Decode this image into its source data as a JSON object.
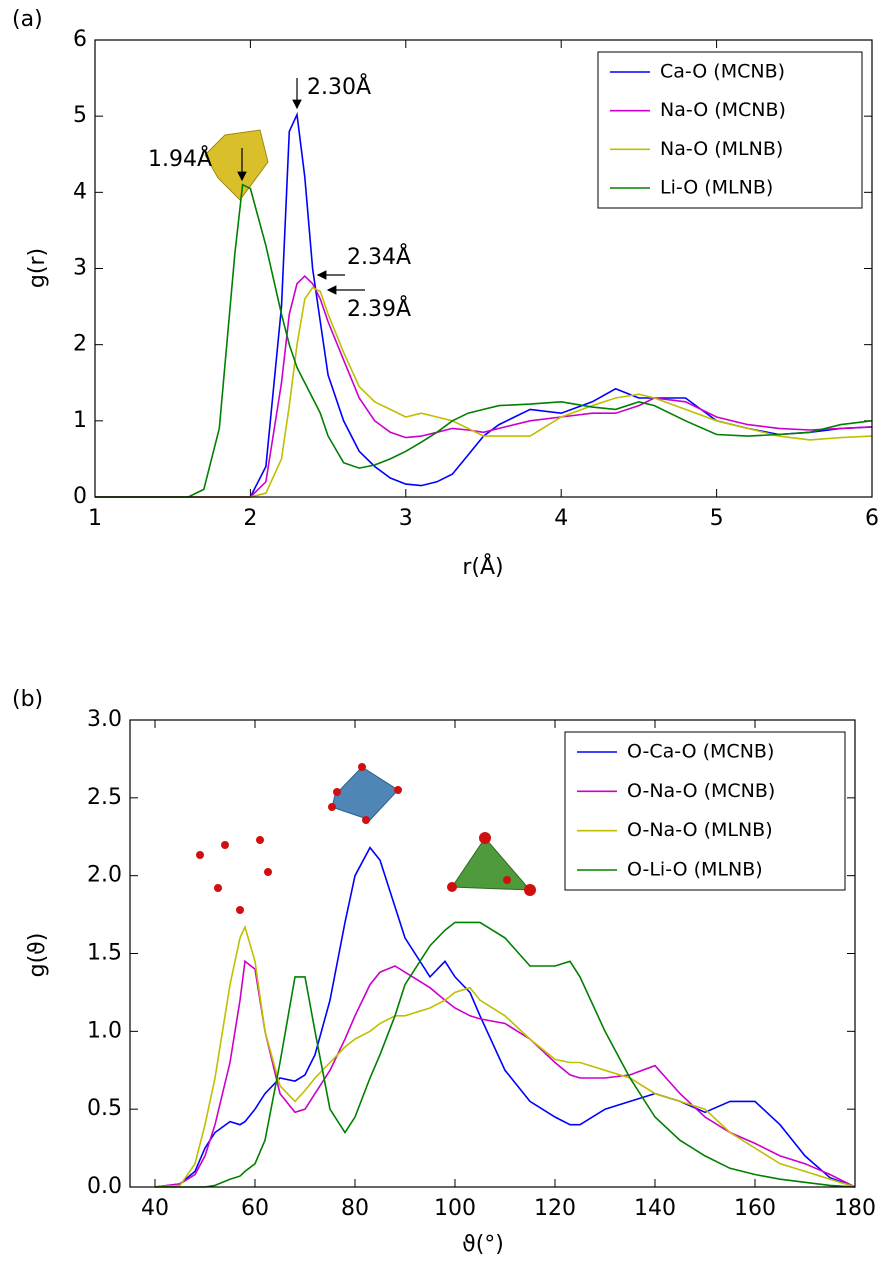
{
  "chart_data": [
    {
      "type": "line",
      "panel_label": "(a)",
      "x_label": "r(Å)",
      "y_label": "g(r)",
      "xlim": [
        1,
        6
      ],
      "xticks": [
        1,
        2,
        3,
        4,
        5,
        6
      ],
      "ylim": [
        0,
        6
      ],
      "yticks": [
        0,
        1,
        2,
        3,
        4,
        5,
        6
      ],
      "legend": "upper right",
      "x": [
        1.0,
        1.5,
        1.6,
        1.7,
        1.8,
        1.9,
        1.95,
        2.0,
        2.1,
        2.2,
        2.25,
        2.3,
        2.35,
        2.4,
        2.45,
        2.5,
        2.6,
        2.7,
        2.8,
        2.9,
        3.0,
        3.1,
        3.2,
        3.3,
        3.4,
        3.5,
        3.6,
        3.8,
        4.0,
        4.2,
        4.35,
        4.5,
        4.6,
        4.8,
        5.0,
        5.2,
        5.4,
        5.6,
        5.8,
        6.0
      ],
      "series": [
        {
          "name": "Ca-O (MCNB)",
          "color": "#0000ff",
          "values": [
            0,
            0,
            0,
            0,
            0,
            0,
            0,
            0,
            0.4,
            2.5,
            4.8,
            5.02,
            4.2,
            3.0,
            2.3,
            1.6,
            1.0,
            0.6,
            0.4,
            0.25,
            0.17,
            0.15,
            0.2,
            0.3,
            0.55,
            0.8,
            0.95,
            1.15,
            1.1,
            1.25,
            1.42,
            1.3,
            1.3,
            1.3,
            1.0,
            0.9,
            0.82,
            0.85,
            0.9,
            0.92
          ]
        },
        {
          "name": "Na-O (MCNB)",
          "color": "#cc00cc",
          "values": [
            0,
            0,
            0,
            0,
            0,
            0,
            0,
            0,
            0.2,
            1.5,
            2.4,
            2.8,
            2.9,
            2.8,
            2.6,
            2.3,
            1.8,
            1.3,
            1.0,
            0.85,
            0.78,
            0.8,
            0.85,
            0.9,
            0.88,
            0.85,
            0.9,
            1.0,
            1.05,
            1.1,
            1.1,
            1.2,
            1.3,
            1.25,
            1.05,
            0.95,
            0.9,
            0.88,
            0.9,
            0.92
          ]
        },
        {
          "name": "Na-O (MLNB)",
          "color": "#bfbf00",
          "values": [
            0,
            0,
            0,
            0,
            0,
            0,
            0,
            0,
            0.05,
            0.5,
            1.2,
            2.0,
            2.6,
            2.75,
            2.7,
            2.4,
            1.9,
            1.45,
            1.25,
            1.15,
            1.05,
            1.1,
            1.05,
            1.0,
            0.9,
            0.8,
            0.8,
            0.8,
            1.05,
            1.2,
            1.3,
            1.35,
            1.3,
            1.15,
            1.0,
            0.9,
            0.8,
            0.75,
            0.78,
            0.8
          ]
        },
        {
          "name": "Li-O (MLNB)",
          "color": "#008000",
          "values": [
            0,
            0,
            0,
            0.1,
            0.9,
            3.2,
            4.1,
            4.05,
            3.3,
            2.4,
            2.0,
            1.7,
            1.5,
            1.3,
            1.1,
            0.8,
            0.45,
            0.38,
            0.42,
            0.5,
            0.6,
            0.72,
            0.85,
            1.0,
            1.1,
            1.15,
            1.2,
            1.22,
            1.25,
            1.18,
            1.15,
            1.25,
            1.2,
            1.0,
            0.82,
            0.8,
            0.82,
            0.85,
            0.95,
            1.0
          ]
        }
      ],
      "annotations": [
        "2.30Å",
        "1.94Å",
        "2.34Å",
        "2.39Å"
      ]
    },
    {
      "type": "line",
      "panel_label": "(b)",
      "x_label": "ϑ(°)",
      "y_label": "g(ϑ)",
      "xlim": [
        35,
        180
      ],
      "xticks": [
        40,
        60,
        80,
        100,
        120,
        140,
        160,
        180
      ],
      "ylim": [
        0,
        3
      ],
      "yticks": [
        {
          "value": 0,
          "label": "0.0"
        },
        0.5,
        {
          "value": 1,
          "label": "1.0"
        },
        1.5,
        {
          "value": 2,
          "label": "2.0"
        },
        2.5,
        {
          "value": 3,
          "label": "3.0"
        }
      ],
      "legend": "upper right",
      "x": [
        40,
        45,
        48,
        50,
        52,
        55,
        57,
        58,
        60,
        62,
        65,
        68,
        70,
        72,
        75,
        78,
        80,
        83,
        85,
        88,
        90,
        95,
        98,
        100,
        103,
        105,
        110,
        115,
        120,
        123,
        125,
        130,
        135,
        140,
        145,
        150,
        155,
        160,
        165,
        170,
        175,
        180
      ],
      "series": [
        {
          "name": "O-Ca-O (MCNB)",
          "color": "#0000ff",
          "values": [
            0,
            0.02,
            0.1,
            0.25,
            0.35,
            0.42,
            0.4,
            0.42,
            0.5,
            0.6,
            0.7,
            0.68,
            0.72,
            0.85,
            1.2,
            1.7,
            2.0,
            2.18,
            2.1,
            1.8,
            1.6,
            1.35,
            1.45,
            1.35,
            1.25,
            1.1,
            0.75,
            0.55,
            0.45,
            0.4,
            0.4,
            0.5,
            0.55,
            0.6,
            0.55,
            0.48,
            0.55,
            0.55,
            0.4,
            0.2,
            0.06,
            0
          ]
        },
        {
          "name": "O-Na-O (MCNB)",
          "color": "#cc00cc",
          "values": [
            0,
            0.02,
            0.08,
            0.2,
            0.4,
            0.8,
            1.2,
            1.45,
            1.4,
            1.0,
            0.6,
            0.48,
            0.5,
            0.6,
            0.75,
            0.95,
            1.1,
            1.3,
            1.38,
            1.42,
            1.38,
            1.28,
            1.2,
            1.15,
            1.1,
            1.08,
            1.05,
            0.95,
            0.8,
            0.72,
            0.7,
            0.7,
            0.72,
            0.78,
            0.6,
            0.45,
            0.35,
            0.28,
            0.2,
            0.15,
            0.08,
            0
          ]
        },
        {
          "name": "O-Na-O (MLNB)",
          "color": "#bfbf00",
          "values": [
            0,
            0.01,
            0.15,
            0.4,
            0.7,
            1.3,
            1.6,
            1.67,
            1.45,
            1.0,
            0.65,
            0.55,
            0.62,
            0.7,
            0.8,
            0.9,
            0.95,
            1.0,
            1.05,
            1.1,
            1.1,
            1.15,
            1.2,
            1.25,
            1.28,
            1.2,
            1.1,
            0.95,
            0.82,
            0.8,
            0.8,
            0.75,
            0.7,
            0.6,
            0.55,
            0.5,
            0.35,
            0.25,
            0.15,
            0.1,
            0.05,
            0
          ]
        },
        {
          "name": "O-Li-O (MLNB)",
          "color": "#008000",
          "values": [
            0,
            0,
            0,
            0,
            0.01,
            0.05,
            0.07,
            0.1,
            0.15,
            0.3,
            0.8,
            1.35,
            1.35,
            1.0,
            0.5,
            0.35,
            0.45,
            0.7,
            0.85,
            1.1,
            1.3,
            1.55,
            1.65,
            1.7,
            1.7,
            1.7,
            1.6,
            1.42,
            1.42,
            1.45,
            1.35,
            1.0,
            0.7,
            0.45,
            0.3,
            0.2,
            0.12,
            0.08,
            0.05,
            0.03,
            0.01,
            0
          ]
        }
      ]
    }
  ]
}
